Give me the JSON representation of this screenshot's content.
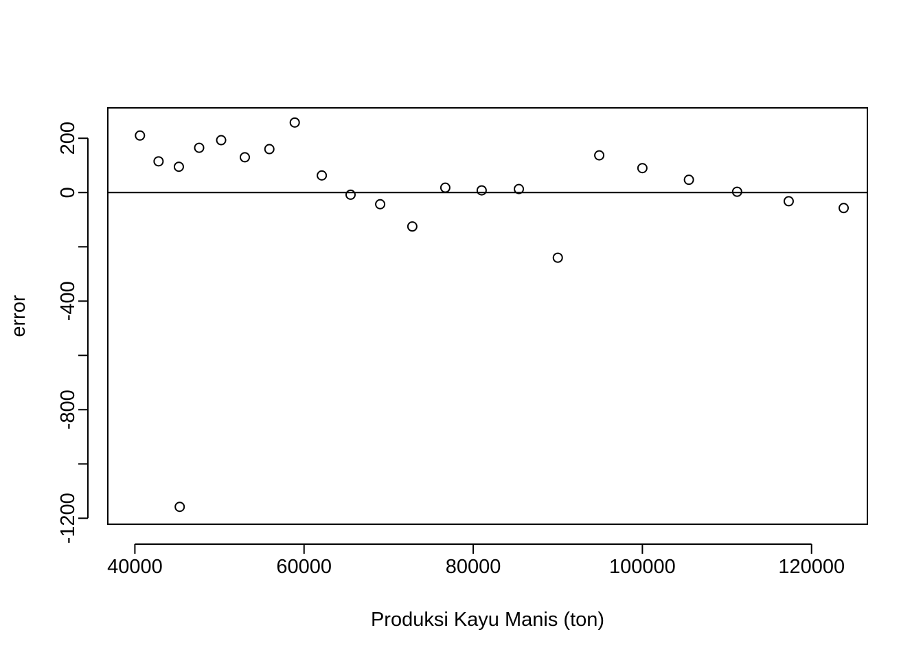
{
  "chart_data": {
    "type": "scatter",
    "title": "",
    "xlabel": "Produksi Kayu Manis (ton)",
    "ylabel": "error",
    "xlim": [
      36800,
      126600
    ],
    "ylim": [
      -1222,
      312
    ],
    "x_ticks": [
      40000,
      60000,
      80000,
      100000,
      120000
    ],
    "x_tick_labels": [
      "40000",
      "60000",
      "80000",
      "100000",
      "120000"
    ],
    "y_ticks": [
      -1200,
      -1000,
      -800,
      -600,
      -400,
      -200,
      0,
      200
    ],
    "y_tick_labels": [
      "-1200",
      "",
      "-800",
      "",
      "-400",
      "",
      "0",
      "200"
    ],
    "grid": false,
    "reference_line": {
      "y": 0,
      "color": "#000000"
    },
    "marker": {
      "shape": "open-circle",
      "color": "#000000"
    },
    "series": [
      {
        "x": [
          40600,
          42800,
          45200,
          45300,
          47600,
          50200,
          53000,
          55900,
          58900,
          62100,
          65500,
          69000,
          72800,
          76700,
          81000,
          85400,
          90000,
          94900,
          100000,
          105500,
          111200,
          117300,
          123800
        ],
        "y": [
          210,
          115,
          95,
          -1158,
          165,
          193,
          130,
          160,
          258,
          63,
          -8,
          -43,
          -125,
          18,
          8,
          13,
          -240,
          137,
          90,
          47,
          3,
          -32,
          -57
        ]
      }
    ]
  }
}
